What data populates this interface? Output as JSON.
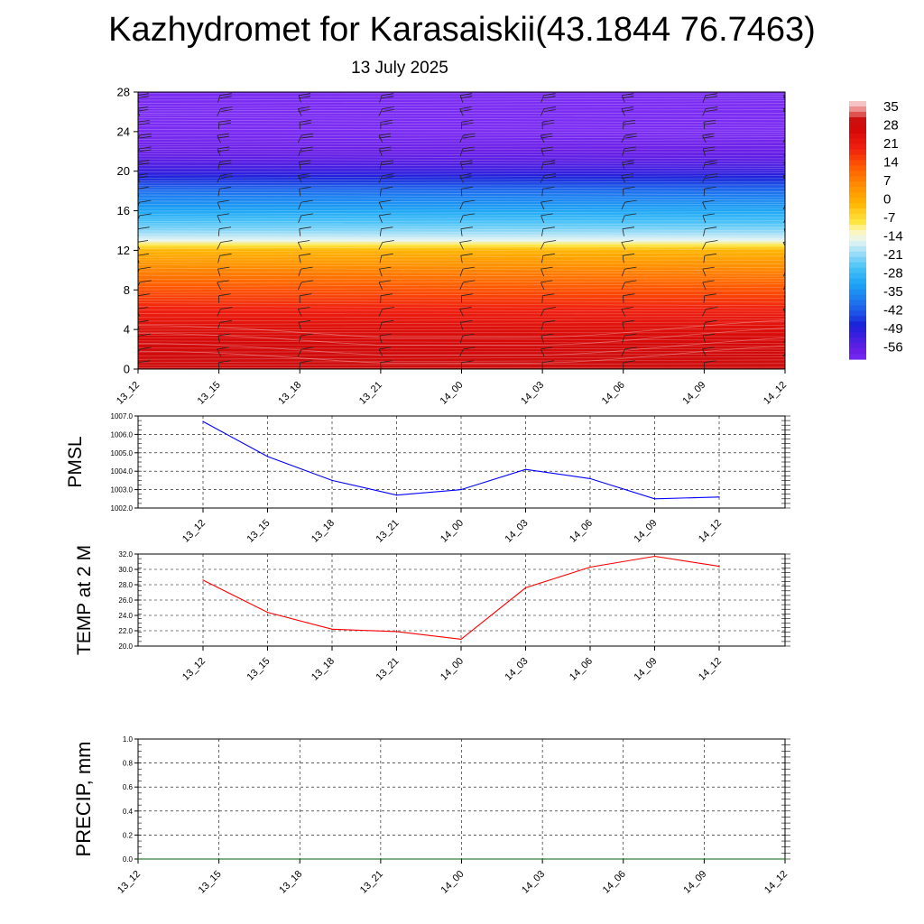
{
  "header": {
    "title": "Kazhydromet for Karasaiskii(43.1844 76.7463)",
    "subtitle": "13 July 2025"
  },
  "chart_data": [
    {
      "type": "heatmap",
      "name": "vertical-cross-section",
      "x_ticks": [
        "13_12",
        "13_15",
        "13_18",
        "13_21",
        "14_00",
        "14_03",
        "14_06",
        "14_09",
        "14_12"
      ],
      "y_ticks": [
        0,
        4,
        8,
        12,
        16,
        20,
        24,
        28
      ],
      "ylim": [
        0,
        28
      ],
      "colorbar_labels": [
        "35",
        "28",
        "21",
        "14",
        "7",
        "0",
        "-7",
        "-14",
        "-21",
        "-28",
        "-35",
        "-42",
        "-49",
        "-56"
      ],
      "colorbar_range": [
        -60,
        38
      ],
      "temperature_profile": [
        [
          0,
          31
        ],
        [
          2,
          29
        ],
        [
          4,
          26
        ],
        [
          6,
          21
        ],
        [
          8,
          15
        ],
        [
          10,
          8
        ],
        [
          11,
          4
        ],
        [
          12,
          0
        ],
        [
          13,
          -14
        ],
        [
          14,
          -20
        ],
        [
          16,
          -30
        ],
        [
          18,
          -38
        ],
        [
          19,
          -44
        ],
        [
          20,
          -50
        ],
        [
          21,
          -54
        ],
        [
          22,
          -56
        ],
        [
          24,
          -60
        ],
        [
          28,
          -60
        ]
      ],
      "colors": {
        "stops": [
          [
            -60,
            "#7b2cf2"
          ],
          [
            -56,
            "#6a1fe6"
          ],
          [
            -50,
            "#3a1fe0"
          ],
          [
            -46,
            "#1a22d8"
          ],
          [
            -42,
            "#1e4ee6"
          ],
          [
            -36,
            "#1e7ef0"
          ],
          [
            -30,
            "#1ea6f5"
          ],
          [
            -24,
            "#4cc4f7"
          ],
          [
            -18,
            "#a8e0f7"
          ],
          [
            -14,
            "#e8f6f2"
          ],
          [
            -10,
            "#fff6b0"
          ],
          [
            -7,
            "#ffe640"
          ],
          [
            -3,
            "#ffcc20"
          ],
          [
            0,
            "#ffb400"
          ],
          [
            7,
            "#ff8c00"
          ],
          [
            14,
            "#ff5a00"
          ],
          [
            21,
            "#f02010"
          ],
          [
            28,
            "#d40808"
          ],
          [
            32,
            "#cc1010"
          ],
          [
            35,
            "#e87878"
          ],
          [
            38,
            "#f4c4c4"
          ]
        ]
      }
    },
    {
      "type": "line",
      "name": "PMSL",
      "ylabel": "PMSL",
      "categories": [
        "13_12",
        "13_15",
        "13_18",
        "13_21",
        "14_00",
        "14_03",
        "14_06",
        "14_09",
        "14_12"
      ],
      "values": [
        1006.7,
        1004.8,
        1003.5,
        1002.7,
        1003.0,
        1004.1,
        1003.6,
        1002.5,
        1002.6
      ],
      "y_ticks": [
        "1002.0",
        "1003.0",
        "1004.0",
        "1005.0",
        "1006.0",
        "1007.0"
      ],
      "ylim": [
        1002,
        1007
      ],
      "color": "#0000ff"
    },
    {
      "type": "line",
      "name": "TEMP",
      "ylabel": "TEMP at 2 M",
      "categories": [
        "13_12",
        "13_15",
        "13_18",
        "13_21",
        "14_00",
        "14_03",
        "14_06",
        "14_09",
        "14_12"
      ],
      "values": [
        28.6,
        24.4,
        22.2,
        21.9,
        20.9,
        27.6,
        30.3,
        31.7,
        30.4
      ],
      "y_ticks": [
        "20.0",
        "22.0",
        "24.0",
        "26.0",
        "28.0",
        "30.0",
        "32.0"
      ],
      "ylim": [
        20,
        32
      ],
      "color": "#ff0000"
    },
    {
      "type": "line",
      "name": "PRECIP",
      "ylabel": "PRECIP, mm",
      "categories": [
        "13_12",
        "13_15",
        "13_18",
        "13_21",
        "14_00",
        "14_03",
        "14_06",
        "14_09",
        "14_12"
      ],
      "values": [
        0,
        0,
        0,
        0,
        0,
        0,
        0,
        0,
        0
      ],
      "y_ticks": [
        "0.0",
        "0.2",
        "0.4",
        "0.6",
        "0.8",
        "1.0"
      ],
      "ylim": [
        0,
        1
      ],
      "color": "#006400"
    }
  ]
}
